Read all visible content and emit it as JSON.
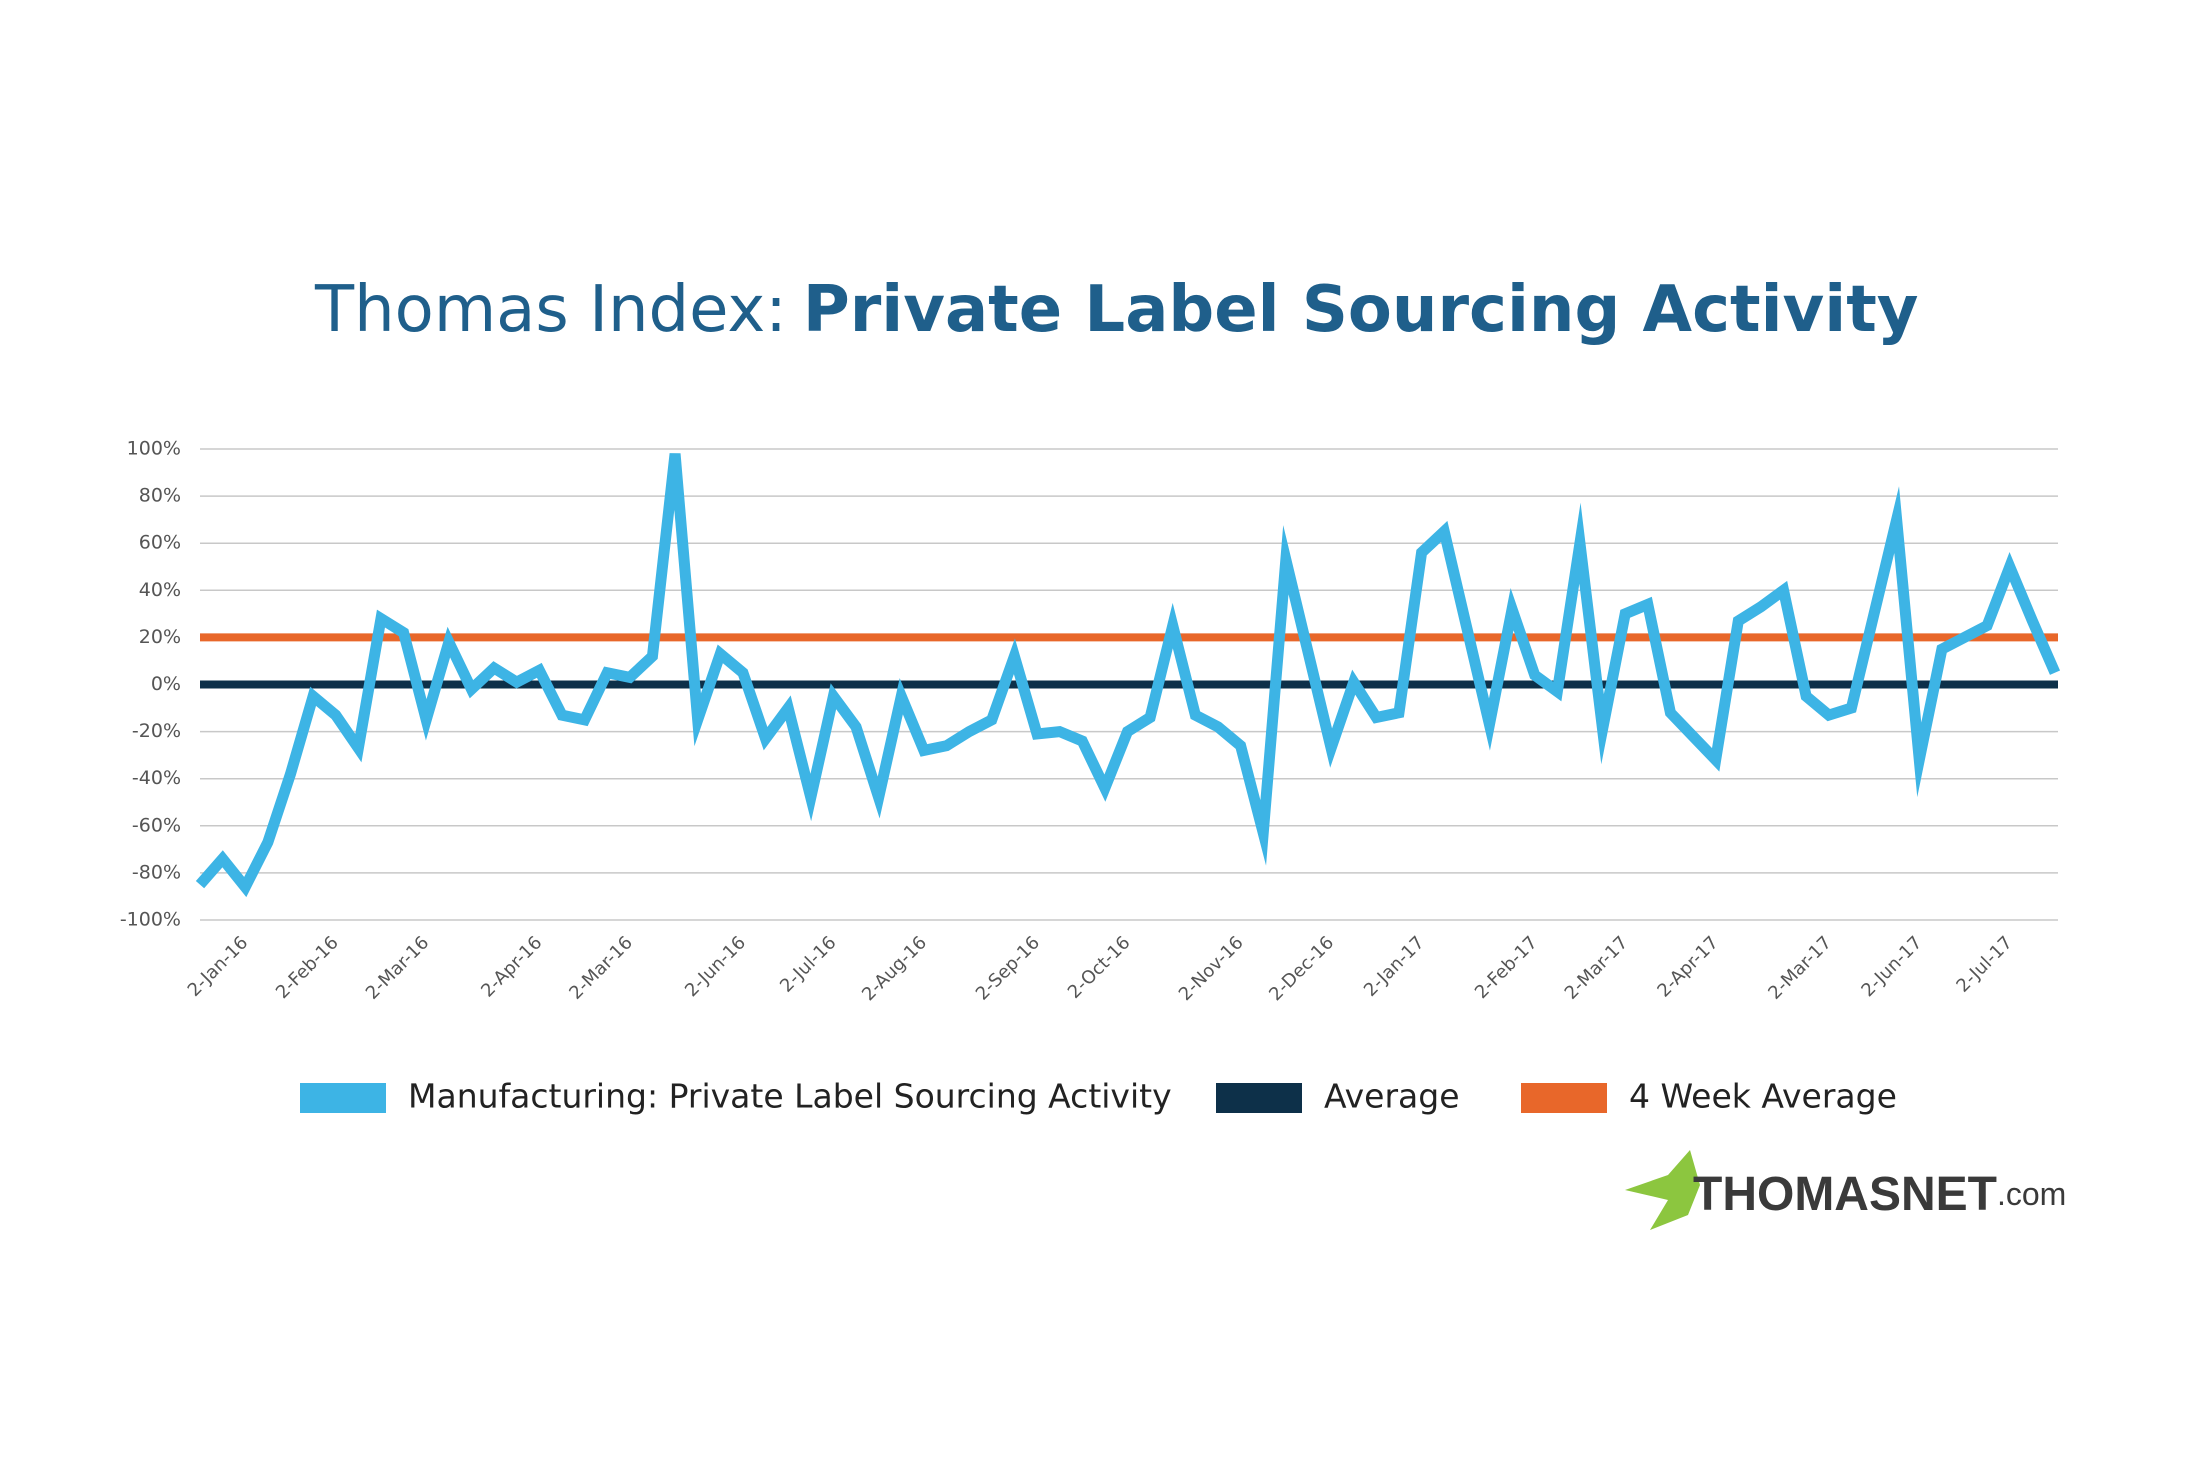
{
  "chart_data": {
    "type": "line",
    "title": {
      "lead": "Thomas Index:",
      "main": "Private Label Sourcing Activity"
    },
    "categories": [
      null,
      null,
      "2-Jan-16",
      null,
      null,
      null,
      "2-Feb-16",
      null,
      null,
      null,
      "2-Mar-16",
      null,
      null,
      null,
      null,
      "2-Apr-16",
      null,
      null,
      null,
      "2-Mar-16",
      null,
      null,
      null,
      null,
      "2-Jun-16",
      null,
      null,
      null,
      "2-Jul-16",
      null,
      null,
      null,
      "2-Aug-16",
      null,
      null,
      null,
      null,
      "2-Sep-16",
      null,
      null,
      null,
      "2-Oct-16",
      null,
      null,
      null,
      null,
      "2-Nov-16",
      null,
      null,
      null,
      "2-Dec-16",
      null,
      null,
      null,
      "2-Jan-17",
      null,
      null,
      null,
      null,
      "2-Feb-17",
      null,
      null,
      null,
      "2-Mar-17",
      null,
      null,
      null,
      "2-Apr-17",
      null,
      null,
      null,
      null,
      "2-Mar-17",
      null,
      null,
      null,
      "2-Jun-17",
      null,
      null,
      null,
      "2-Jul-17",
      null,
      null
    ],
    "series": [
      {
        "name": "Manufacturing: Private Label Sourcing Activity",
        "color": "#3db4e5",
        "values": [
          -85,
          -74,
          -86,
          -67,
          -38,
          -5,
          -13,
          -27,
          28,
          22,
          -15,
          18,
          -2,
          7,
          1,
          6,
          -13,
          -15,
          5,
          3,
          12,
          98,
          -15,
          13,
          5,
          -23,
          -10,
          -48,
          -5,
          -18,
          -48,
          -5,
          -28,
          -26,
          -20,
          -15,
          12,
          -21,
          -20,
          -24,
          -44,
          -20,
          -14,
          25,
          -13,
          -18,
          -26,
          -63,
          53,
          13,
          -27,
          1,
          -14,
          -12,
          56,
          65,
          24,
          -17,
          32,
          4,
          -3,
          60,
          -19,
          30,
          34,
          -12,
          -22,
          -32,
          27,
          33,
          40,
          -5,
          -13,
          -10,
          30,
          70,
          -32,
          15,
          20,
          25,
          50,
          27,
          5
        ]
      }
    ],
    "reference_lines": [
      {
        "name": "Average",
        "color": "#0d3049",
        "value": 0
      },
      {
        "name": "4 Week Average",
        "color": "#e8672a",
        "value": 20
      }
    ],
    "ylim": [
      -100,
      100
    ],
    "yticks": [
      {
        "value": -100,
        "label": "-100%"
      },
      {
        "value": -80,
        "label": "-80%"
      },
      {
        "value": -60,
        "label": "-60%"
      },
      {
        "value": -40,
        "label": "-40%"
      },
      {
        "value": -20,
        "label": "-20%"
      },
      {
        "value": 0,
        "label": "0%"
      },
      {
        "value": 20,
        "label": "20%"
      },
      {
        "value": 40,
        "label": "40%"
      },
      {
        "value": 60,
        "label": "60%"
      },
      {
        "value": 80,
        "label": "80%"
      },
      {
        "value": 100,
        "label": "100%"
      }
    ],
    "grid": true,
    "logo": {
      "name": "THOMASNET",
      "suffix": ".com"
    }
  }
}
